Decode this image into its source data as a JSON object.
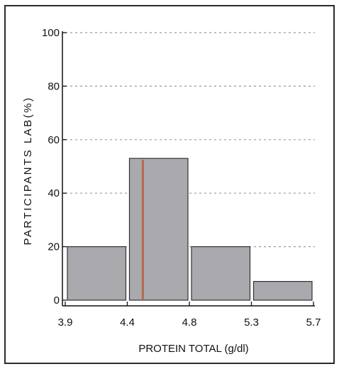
{
  "chart_data": {
    "type": "bar",
    "title": "",
    "xlabel": "PROTEIN TOTAL  (g/dl)",
    "ylabel": "PARTICIPANTS LAB(%)",
    "bin_edges": [
      3.9,
      4.4,
      4.8,
      5.3,
      5.7
    ],
    "x_tick_labels": [
      "3.9",
      "4.4",
      "4.8",
      "5.3",
      "5.7"
    ],
    "values": [
      20,
      53,
      20,
      7
    ],
    "y_ticks": [
      0,
      20,
      40,
      60,
      80,
      100
    ],
    "ylim": [
      0,
      100
    ],
    "marker_x": 4.5,
    "bar_color": "#a9a9ae",
    "marker_color": "#b36a4a",
    "grid": "dotted horizontal"
  }
}
